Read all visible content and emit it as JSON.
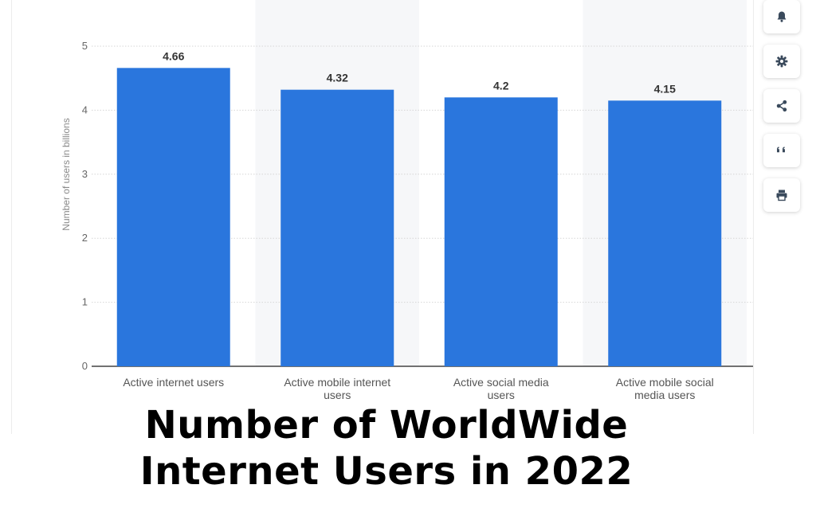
{
  "chart_data": {
    "type": "bar",
    "categories": [
      "Active internet users",
      "Active mobile internet users",
      "Active social media users",
      "Active mobile social media users"
    ],
    "values": [
      4.66,
      4.32,
      4.2,
      4.15
    ],
    "data_labels": [
      "4.66",
      "4.32",
      "4.2",
      "4.15"
    ],
    "ylabel": "Number of users in billions",
    "xlabel": "",
    "ylim": [
      0,
      5
    ],
    "yticks": [
      0,
      1,
      2,
      3,
      4,
      5
    ],
    "grid": true,
    "bar_color": "#2a76dd"
  },
  "caption": {
    "line1": "Number of WorldWide",
    "line2": "Internet Users in 2022"
  },
  "toolbar": {
    "items": [
      "bell-icon",
      "gear-icon",
      "share-icon",
      "quote-icon",
      "print-icon"
    ]
  },
  "colors": {
    "bar": "#2a76dd",
    "band": "#f6f7f9",
    "grid": "#d6d6d6",
    "icon": "#3a4a5c"
  }
}
